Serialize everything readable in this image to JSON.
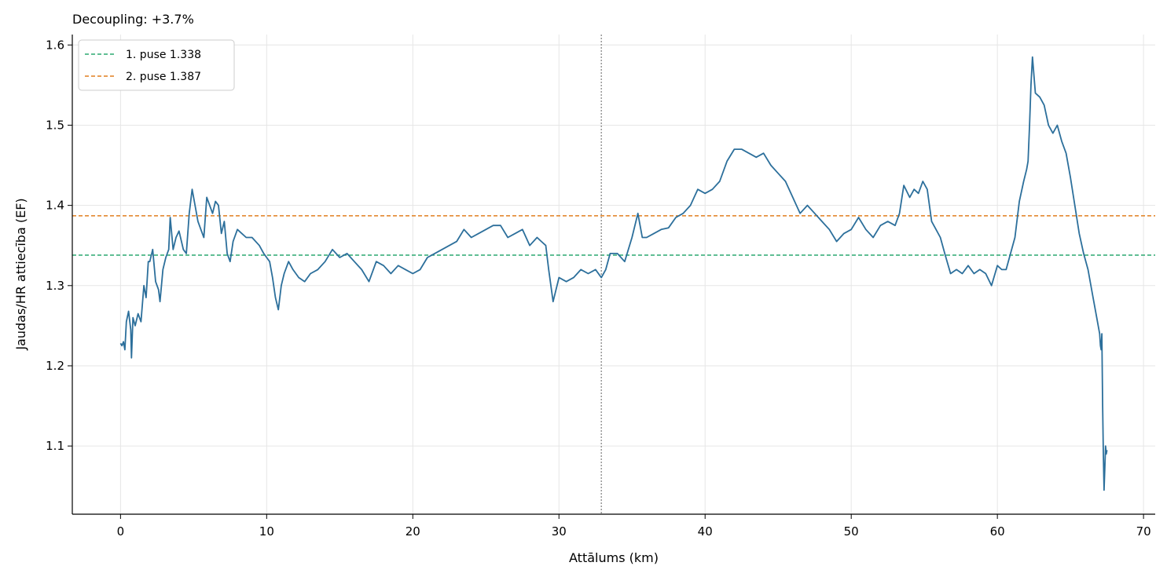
{
  "chart_data": {
    "type": "line",
    "title": "Decoupling: +3.7%",
    "xlabel": "Attālums (km)",
    "ylabel": "Jaudas/HR attiecība (EF)",
    "xlim": [
      -3.3,
      70.8
    ],
    "ylim": [
      1.015,
      1.613
    ],
    "xticks": [
      0,
      10,
      20,
      30,
      40,
      50,
      60,
      70
    ],
    "yticks": [
      1.1,
      1.2,
      1.3,
      1.4,
      1.5,
      1.6
    ],
    "xtick_labels": [
      "0",
      "10",
      "20",
      "30",
      "40",
      "50",
      "60",
      "70"
    ],
    "ytick_labels": [
      "1.1",
      "1.2",
      "1.3",
      "1.4",
      "1.5",
      "1.6"
    ],
    "grid": true,
    "legend_position": "top-left",
    "split_marker_x": 32.9,
    "colors": {
      "series": "#2c6f9b",
      "first_half": "#2ca870",
      "second_half": "#e07f1e",
      "split": "#888888",
      "grid": "#e6e6e6"
    },
    "reference_lines": [
      {
        "name": "1. puse 1.338",
        "label": "1. puse 1.338",
        "y": 1.338,
        "color": "#2ca870"
      },
      {
        "name": "2. puse 1.387",
        "label": "2. puse 1.387",
        "y": 1.387,
        "color": "#e07f1e"
      }
    ],
    "series": [
      {
        "x": [
          0.0,
          0.1,
          0.2,
          0.3,
          0.4,
          0.55,
          0.7,
          0.75,
          0.85,
          1.0,
          1.2,
          1.4,
          1.6,
          1.75,
          1.9,
          2.0,
          2.2,
          2.4,
          2.6,
          2.7,
          2.9,
          3.1,
          3.3,
          3.4,
          3.6,
          3.8,
          4.0,
          4.3,
          4.5,
          4.7,
          4.9,
          5.1,
          5.3,
          5.5,
          5.7,
          5.9,
          6.1,
          6.3,
          6.5,
          6.7,
          6.9,
          7.1,
          7.3,
          7.5,
          7.7,
          8.0,
          8.3,
          8.6,
          9.0,
          9.5,
          9.8,
          10.0,
          10.2,
          10.4,
          10.6,
          10.8,
          11.0,
          11.2,
          11.5,
          11.8,
          12.2,
          12.6,
          13.0,
          13.5,
          14.0,
          14.5,
          15.0,
          15.5,
          16.0,
          16.5,
          17.0,
          17.5,
          18.0,
          18.5,
          19.0,
          19.5,
          20.0,
          20.5,
          21.0,
          21.5,
          22.0,
          22.5,
          23.0,
          23.5,
          24.0,
          24.5,
          25.0,
          25.5,
          26.0,
          26.5,
          27.0,
          27.5,
          28.0,
          28.5,
          28.8,
          29.1,
          29.3,
          29.6,
          30.0,
          30.5,
          31.0,
          31.5,
          32.0,
          32.5,
          32.9,
          33.2,
          33.5,
          34.0,
          34.5,
          35.0,
          35.4,
          35.7,
          36.0,
          36.5,
          37.0,
          37.5,
          38.0,
          38.5,
          39.0,
          39.5,
          40.0,
          40.5,
          41.0,
          41.5,
          42.0,
          42.5,
          43.0,
          43.5,
          44.0,
          44.5,
          45.0,
          45.5,
          46.0,
          46.5,
          47.0,
          47.5,
          48.0,
          48.5,
          49.0,
          49.5,
          50.0,
          50.5,
          51.0,
          51.5,
          52.0,
          52.5,
          53.0,
          53.3,
          53.6,
          54.0,
          54.3,
          54.6,
          54.9,
          55.2,
          55.5,
          55.8,
          56.1,
          56.4,
          56.8,
          57.2,
          57.6,
          58.0,
          58.4,
          58.8,
          59.2,
          59.6,
          60.0,
          60.3,
          60.6,
          60.9,
          61.2,
          61.5,
          61.8,
          62.0,
          62.1,
          62.2,
          62.3,
          62.4,
          62.6,
          62.9,
          63.2,
          63.5,
          63.8,
          64.1,
          64.4,
          64.7,
          65.0,
          65.3,
          65.6,
          65.9,
          66.2,
          66.5,
          66.8,
          67.0,
          67.05,
          67.1,
          67.15,
          67.2,
          67.25,
          67.3,
          67.35,
          67.4,
          67.45,
          67.5
        ],
        "y": [
          1.228,
          1.225,
          1.23,
          1.22,
          1.255,
          1.268,
          1.245,
          1.21,
          1.26,
          1.25,
          1.265,
          1.255,
          1.3,
          1.285,
          1.33,
          1.33,
          1.345,
          1.305,
          1.295,
          1.28,
          1.32,
          1.335,
          1.345,
          1.385,
          1.345,
          1.36,
          1.368,
          1.345,
          1.34,
          1.39,
          1.42,
          1.4,
          1.38,
          1.37,
          1.36,
          1.41,
          1.4,
          1.39,
          1.405,
          1.4,
          1.365,
          1.38,
          1.34,
          1.33,
          1.355,
          1.37,
          1.365,
          1.36,
          1.36,
          1.35,
          1.34,
          1.335,
          1.33,
          1.31,
          1.285,
          1.27,
          1.3,
          1.315,
          1.33,
          1.32,
          1.31,
          1.305,
          1.315,
          1.32,
          1.33,
          1.345,
          1.335,
          1.34,
          1.33,
          1.32,
          1.305,
          1.33,
          1.325,
          1.315,
          1.325,
          1.32,
          1.315,
          1.32,
          1.335,
          1.34,
          1.345,
          1.35,
          1.355,
          1.37,
          1.36,
          1.365,
          1.37,
          1.375,
          1.375,
          1.36,
          1.365,
          1.37,
          1.35,
          1.36,
          1.355,
          1.35,
          1.32,
          1.28,
          1.31,
          1.305,
          1.31,
          1.32,
          1.315,
          1.32,
          1.31,
          1.32,
          1.34,
          1.34,
          1.33,
          1.36,
          1.39,
          1.36,
          1.36,
          1.365,
          1.37,
          1.372,
          1.385,
          1.39,
          1.4,
          1.42,
          1.415,
          1.42,
          1.43,
          1.455,
          1.47,
          1.47,
          1.465,
          1.46,
          1.465,
          1.45,
          1.44,
          1.43,
          1.41,
          1.39,
          1.4,
          1.39,
          1.38,
          1.37,
          1.355,
          1.365,
          1.37,
          1.385,
          1.37,
          1.36,
          1.375,
          1.38,
          1.375,
          1.39,
          1.425,
          1.41,
          1.42,
          1.415,
          1.43,
          1.42,
          1.38,
          1.37,
          1.36,
          1.34,
          1.315,
          1.32,
          1.315,
          1.325,
          1.315,
          1.32,
          1.315,
          1.3,
          1.325,
          1.32,
          1.32,
          1.34,
          1.36,
          1.405,
          1.43,
          1.445,
          1.455,
          1.5,
          1.55,
          1.585,
          1.54,
          1.535,
          1.525,
          1.5,
          1.49,
          1.5,
          1.48,
          1.465,
          1.435,
          1.4,
          1.365,
          1.34,
          1.32,
          1.29,
          1.26,
          1.24,
          1.225,
          1.22,
          1.24,
          1.15,
          1.09,
          1.045,
          1.07,
          1.1,
          1.09,
          1.095
        ]
      }
    ]
  }
}
